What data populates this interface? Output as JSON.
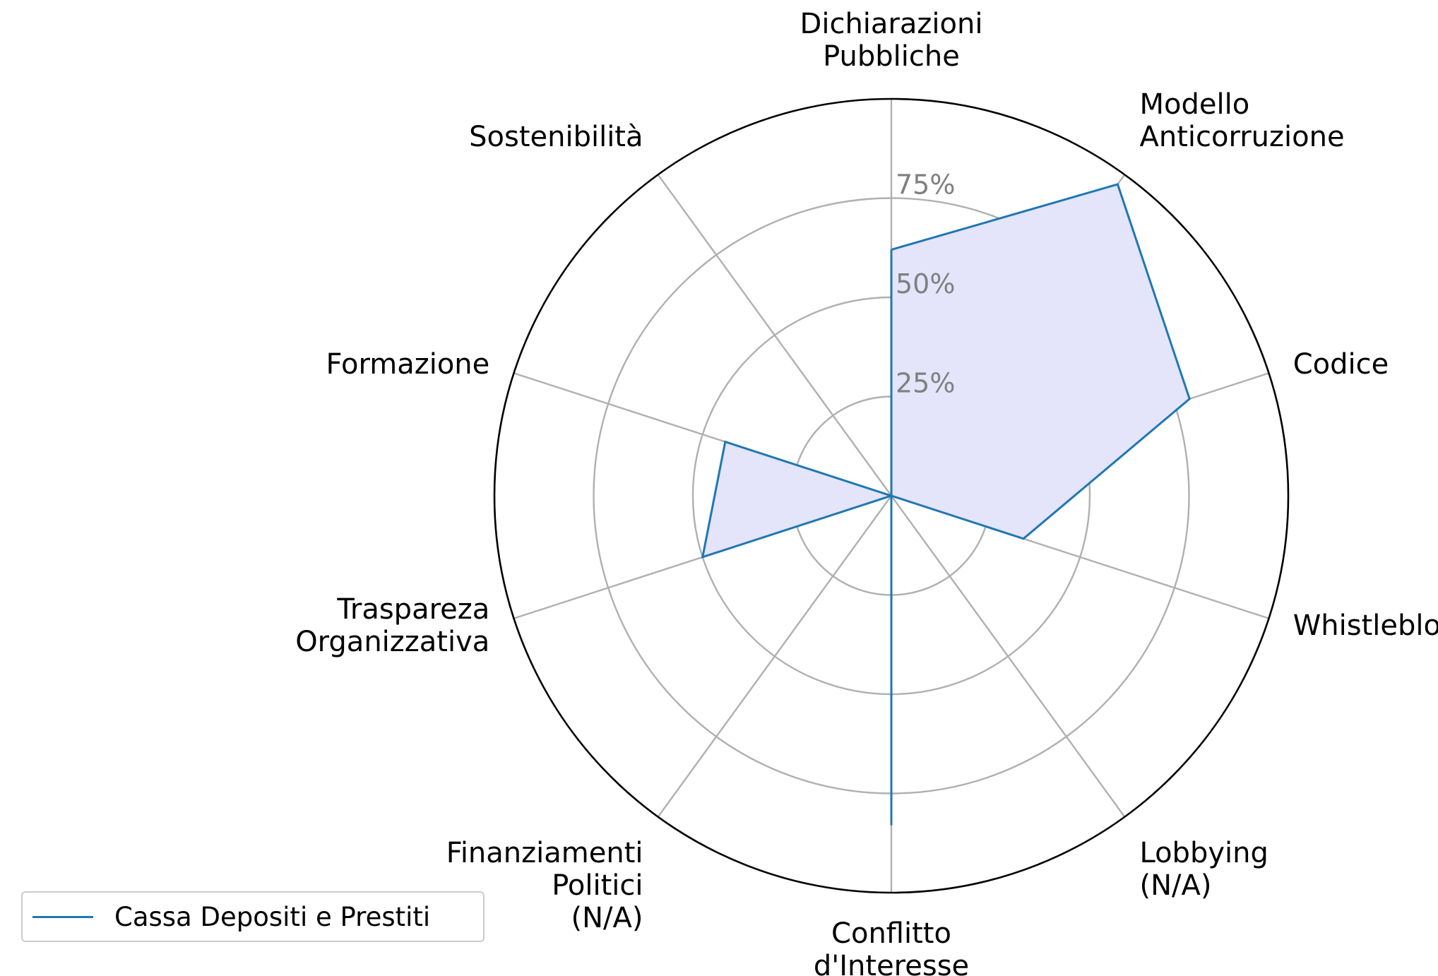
{
  "chart_data": {
    "type": "radar",
    "categories": [
      [
        "Dichiarazioni",
        "Pubbliche"
      ],
      [
        "Modello",
        "Anticorruzione"
      ],
      [
        "Codice"
      ],
      [
        "Whistleblowing"
      ],
      [
        "Lobbying",
        "(N/A)"
      ],
      [
        "Conflitto",
        "d'Interesse"
      ],
      [
        "Finanziamenti",
        "Politici",
        "(N/A)"
      ],
      [
        "Traspareza",
        "Organizzativa"
      ],
      [
        "Formazione"
      ],
      [
        "Sostenibilità"
      ]
    ],
    "series": [
      {
        "name": "Cassa Depositi e Prestiti",
        "values": [
          62,
          97,
          79,
          35,
          0,
          83,
          0,
          50,
          44,
          0
        ],
        "line_color": "#1f77b4",
        "fill_color": "#e4e4fb"
      }
    ],
    "r_ticks": [
      25,
      50,
      75
    ],
    "r_tick_labels": [
      "25%",
      "50%",
      "75%"
    ],
    "r_max": 100,
    "grid": true,
    "legend_position": "lower-left"
  }
}
